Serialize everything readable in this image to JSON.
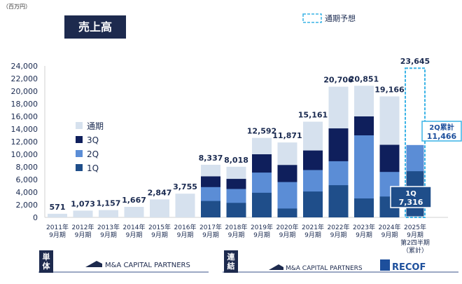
{
  "chart_data": {
    "type": "bar",
    "title": "売上高",
    "unit_label": "（百万円）",
    "ylim": [
      0,
      24000
    ],
    "yticks": [
      "0",
      "2,000",
      "4,000",
      "6,000",
      "8,000",
      "10,000",
      "12,000",
      "14,000",
      "16,000",
      "18,000",
      "20,000",
      "22,000",
      "24,000"
    ],
    "grid": false,
    "legend_position": "left",
    "legend": [
      "通期",
      "3Q",
      "2Q",
      "1Q"
    ],
    "forecast_legend": "通期予想",
    "categories": [
      [
        "2011年",
        "9月期"
      ],
      [
        "2012年",
        "9月期"
      ],
      [
        "2013年",
        "9月期"
      ],
      [
        "2014年",
        "9月期"
      ],
      [
        "2015年",
        "9月期"
      ],
      [
        "2016年",
        "9月期"
      ],
      [
        "2017年",
        "9月期"
      ],
      [
        "2018年",
        "9月期"
      ],
      [
        "2019年",
        "9月期"
      ],
      [
        "2020年",
        "9月期"
      ],
      [
        "2021年",
        "9月期"
      ],
      [
        "2022年",
        "9月期"
      ],
      [
        "2023年",
        "9月期"
      ],
      [
        "2024年",
        "9月期"
      ],
      [
        "2025年",
        "9月期",
        "第2四半期",
        "（累計）"
      ]
    ],
    "totals": [
      571,
      1073,
      1157,
      1667,
      2847,
      3755,
      8337,
      8018,
      12592,
      11871,
      15161,
      20706,
      20851,
      19166,
      23645
    ],
    "total_labels": [
      "571",
      "1,073",
      "1,157",
      "1,667",
      "2,847",
      "3,755",
      "8,337",
      "8,018",
      "12,592",
      "11,871",
      "15,161",
      "20,706",
      "20,851",
      "19,166",
      "23,645"
    ],
    "series": [
      {
        "name": "1Q",
        "values": [
          null,
          null,
          null,
          null,
          null,
          null,
          2600,
          2300,
          3900,
          1400,
          4100,
          5100,
          3000,
          3300,
          7316
        ]
      },
      {
        "name": "2Q",
        "values": [
          null,
          null,
          null,
          null,
          null,
          null,
          4800,
          4500,
          7100,
          5600,
          7500,
          8900,
          13000,
          7200,
          11466
        ]
      },
      {
        "name": "3Q",
        "values": [
          null,
          null,
          null,
          null,
          null,
          null,
          6500,
          6100,
          10000,
          8300,
          10600,
          14100,
          16000,
          11500,
          null
        ]
      }
    ],
    "annotations": {
      "q1_label": "1Q",
      "q1_value": "7,316",
      "q2_label": "2Q累計",
      "q2_value": "11,466"
    }
  },
  "segments": {
    "left_badge": "単体",
    "right_badge": "連結",
    "left_logo": "M&A CAPITAL PARTNERS",
    "right_logo": "M&A CAPITAL PARTNERS",
    "recof_logo": "RECOF"
  },
  "colors": {
    "title_bg": "#1d2a4e",
    "total": "#d6e1ee",
    "q3": "#0f1f5c",
    "q2": "#5b8dd6",
    "q1": "#1f4e8a",
    "forecast": "#3ab3e6",
    "recof": "#1d4f9c"
  }
}
